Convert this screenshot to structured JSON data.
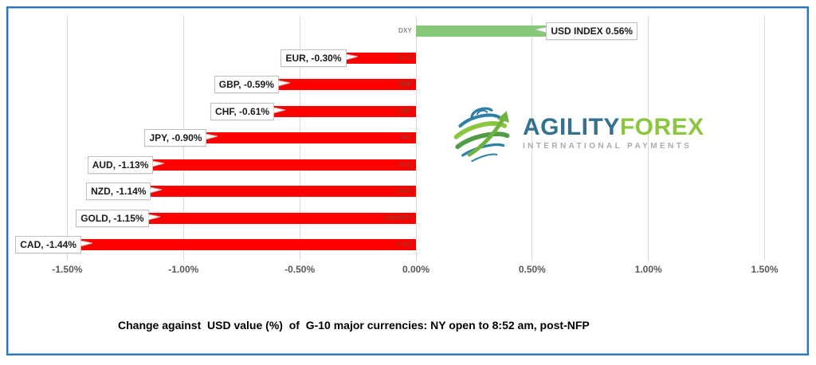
{
  "chart_data": {
    "type": "bar",
    "orientation": "horizontal",
    "title": "",
    "xlabel": "",
    "ylabel": "",
    "xlim": [
      -1.5,
      1.5
    ],
    "grid": true,
    "x_ticks": [
      {
        "label": "-1.50%",
        "value": -1.5
      },
      {
        "label": "-1.00%",
        "value": -1.0
      },
      {
        "label": "-0.50%",
        "value": -0.5
      },
      {
        "label": "0.00%",
        "value": 0.0
      },
      {
        "label": "0.50%",
        "value": 0.5
      },
      {
        "label": "1.00%",
        "value": 1.0
      },
      {
        "label": "1.50%",
        "value": 1.5
      }
    ],
    "bars": [
      {
        "category": "DXY",
        "data_label": "USD INDEX 0.56%",
        "value": 0.56
      },
      {
        "category": "EUR",
        "data_label": "EUR, -0.30%",
        "value": -0.3
      },
      {
        "category": "GBP",
        "data_label": "GBP, -0.59%",
        "value": -0.59
      },
      {
        "category": "CHF",
        "data_label": "CHF, -0.61%",
        "value": -0.61
      },
      {
        "category": "JPY",
        "data_label": "JPY, -0.90%",
        "value": -0.9
      },
      {
        "category": "AUD",
        "data_label": "AUD, -1.13%",
        "value": -1.13
      },
      {
        "category": "NZD",
        "data_label": "NZD, -1.14%",
        "value": -1.14
      },
      {
        "category": "XAUUSD",
        "data_label": "GOLD, -1.15%",
        "value": -1.15
      },
      {
        "category": "CAD",
        "data_label": "CAD, -1.44%",
        "value": -1.44
      }
    ]
  },
  "colors": {
    "positive_bar": "#85C878",
    "negative_bar": "#FF0000",
    "grid": "#D9D9D9",
    "tick_label": "#595959",
    "category_positive": "#8C8C8C",
    "category_negative": "#A33226",
    "callout_border": "#BFBFBF",
    "frame": "#2E75B6"
  },
  "caption": "Change against  USD value (%)  of  G-10 major currencies: NY open to 8:52 am, post-NFP",
  "logo": {
    "brand_part1": "AGILITY",
    "brand_part2": "FOREX",
    "tagline": "INTERNATIONAL PAYMENTS",
    "brand_part1_color": "#34718F",
    "brand_part2_color": "#8CC63F",
    "tagline_color": "#A9ABAD"
  }
}
